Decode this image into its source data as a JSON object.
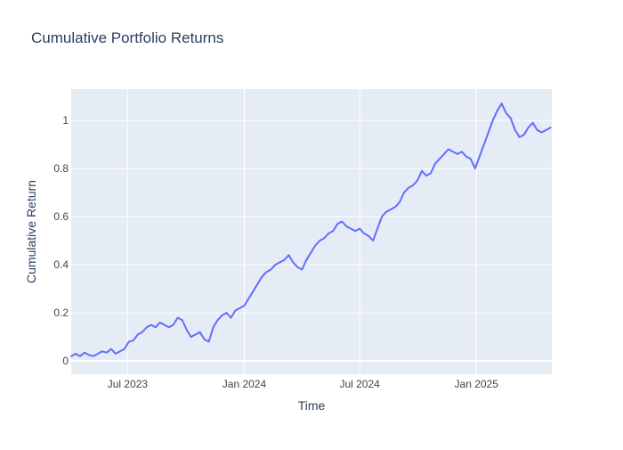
{
  "chart_data": {
    "type": "line",
    "title": "Cumulative Portfolio Returns",
    "xlabel": "Time",
    "ylabel": "Cumulative Return",
    "xlim": [
      "2023-04-03",
      "2025-04-30"
    ],
    "ylim": [
      -0.055,
      1.13
    ],
    "x_ticks": [
      {
        "value": "2023-07-01",
        "label": "Jul 2023"
      },
      {
        "value": "2024-01-01",
        "label": "Jan 2024"
      },
      {
        "value": "2024-07-01",
        "label": "Jul 2024"
      },
      {
        "value": "2025-01-01",
        "label": "Jan 2025"
      }
    ],
    "y_ticks": [
      {
        "value": 0,
        "label": "0"
      },
      {
        "value": 0.2,
        "label": "0.2"
      },
      {
        "value": 0.4,
        "label": "0.4"
      },
      {
        "value": 0.6,
        "label": "0.6"
      },
      {
        "value": 0.8,
        "label": "0.8"
      },
      {
        "value": 1.0,
        "label": "1"
      }
    ],
    "grid": true,
    "legend": "none",
    "colors": {
      "line": "#636efa",
      "plot_background": "#e5ecf6",
      "grid": "#ffffff",
      "text": "#2a3f5f",
      "tick_text": "#444444"
    },
    "series": [
      {
        "x": [
          "2023-04-03",
          "2023-04-10",
          "2023-04-17",
          "2023-04-24",
          "2023-05-01",
          "2023-05-08",
          "2023-05-15",
          "2023-05-22",
          "2023-05-29",
          "2023-06-05",
          "2023-06-12",
          "2023-06-19",
          "2023-06-26",
          "2023-07-03",
          "2023-07-10",
          "2023-07-17",
          "2023-07-24",
          "2023-07-31",
          "2023-08-07",
          "2023-08-14",
          "2023-08-21",
          "2023-08-28",
          "2023-09-04",
          "2023-09-11",
          "2023-09-18",
          "2023-09-25",
          "2023-10-02",
          "2023-10-09",
          "2023-10-16",
          "2023-10-23",
          "2023-10-30",
          "2023-11-06",
          "2023-11-13",
          "2023-11-20",
          "2023-11-27",
          "2023-12-04",
          "2023-12-11",
          "2023-12-18",
          "2023-12-25",
          "2024-01-01",
          "2024-01-08",
          "2024-01-15",
          "2024-01-22",
          "2024-01-29",
          "2024-02-05",
          "2024-02-12",
          "2024-02-19",
          "2024-02-26",
          "2024-03-04",
          "2024-03-11",
          "2024-03-18",
          "2024-03-25",
          "2024-04-01",
          "2024-04-08",
          "2024-04-15",
          "2024-04-22",
          "2024-04-29",
          "2024-05-06",
          "2024-05-13",
          "2024-05-20",
          "2024-05-27",
          "2024-06-03",
          "2024-06-10",
          "2024-06-17",
          "2024-06-24",
          "2024-07-01",
          "2024-07-08",
          "2024-07-15",
          "2024-07-22",
          "2024-07-29",
          "2024-08-05",
          "2024-08-12",
          "2024-08-19",
          "2024-08-26",
          "2024-09-02",
          "2024-09-09",
          "2024-09-16",
          "2024-09-23",
          "2024-09-30",
          "2024-10-07",
          "2024-10-14",
          "2024-10-21",
          "2024-10-28",
          "2024-11-04",
          "2024-11-11",
          "2024-11-18",
          "2024-11-25",
          "2024-12-02",
          "2024-12-09",
          "2024-12-16",
          "2024-12-23",
          "2024-12-30",
          "2025-01-06",
          "2025-01-13",
          "2025-01-20",
          "2025-01-27",
          "2025-02-03",
          "2025-02-10",
          "2025-02-17",
          "2025-02-24",
          "2025-03-03",
          "2025-03-10",
          "2025-03-17",
          "2025-03-24",
          "2025-03-31",
          "2025-04-07",
          "2025-04-14",
          "2025-04-21",
          "2025-04-28"
        ],
        "y": [
          0.02,
          0.03,
          0.02,
          0.035,
          0.025,
          0.02,
          0.03,
          0.04,
          0.035,
          0.05,
          0.03,
          0.04,
          0.05,
          0.08,
          0.085,
          0.11,
          0.12,
          0.14,
          0.15,
          0.14,
          0.16,
          0.15,
          0.14,
          0.15,
          0.18,
          0.17,
          0.13,
          0.1,
          0.11,
          0.12,
          0.09,
          0.08,
          0.14,
          0.17,
          0.19,
          0.2,
          0.18,
          0.21,
          0.22,
          0.23,
          0.26,
          0.29,
          0.32,
          0.35,
          0.37,
          0.38,
          0.4,
          0.41,
          0.42,
          0.44,
          0.41,
          0.39,
          0.38,
          0.42,
          0.45,
          0.48,
          0.5,
          0.51,
          0.53,
          0.54,
          0.57,
          0.58,
          0.56,
          0.55,
          0.54,
          0.55,
          0.53,
          0.52,
          0.5,
          0.55,
          0.6,
          0.62,
          0.63,
          0.64,
          0.66,
          0.7,
          0.72,
          0.73,
          0.75,
          0.79,
          0.77,
          0.78,
          0.82,
          0.84,
          0.86,
          0.88,
          0.87,
          0.86,
          0.87,
          0.85,
          0.84,
          0.8,
          0.85,
          0.9,
          0.95,
          1.0,
          1.04,
          1.07,
          1.03,
          1.01,
          0.96,
          0.93,
          0.94,
          0.97,
          0.99,
          0.96,
          0.95,
          0.96,
          0.97
        ]
      }
    ]
  }
}
